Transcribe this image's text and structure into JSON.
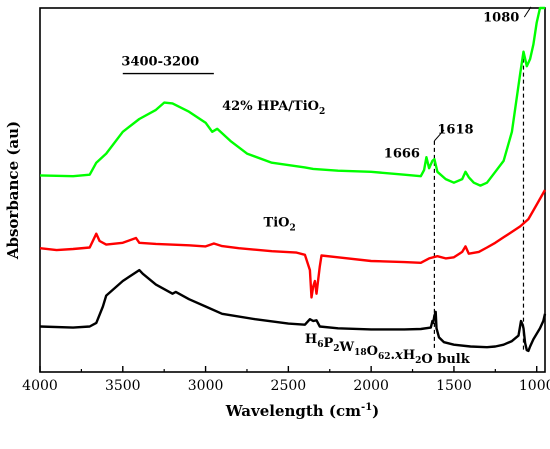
{
  "chart_data": {
    "type": "line",
    "xlabel": "Wavelength (cm",
    "xlabel_sup": "-1",
    "xlabel_end": ")",
    "ylabel": "Absorbance (au)",
    "xlim": [
      4000,
      950
    ],
    "ylim": [
      0,
      100
    ],
    "x_ticks": [
      4000,
      3500,
      3000,
      2500,
      2000,
      1500,
      1000
    ],
    "x_tick_labels": [
      "4000",
      "3500",
      "3000",
      "2500",
      "2000",
      "1500",
      "1000"
    ],
    "y_ticks_visible": false,
    "grid": false,
    "series": [
      {
        "color": "#00ff00",
        "label_parts": [
          {
            "t": "42% HPA/TiO"
          },
          {
            "t": "2",
            "sub": true
          }
        ],
        "points": [
          [
            4000,
            54.0
          ],
          [
            3800,
            53.8
          ],
          [
            3700,
            54.2
          ],
          [
            3660,
            57.5
          ],
          [
            3600,
            60
          ],
          [
            3500,
            66
          ],
          [
            3400,
            69.5
          ],
          [
            3300,
            72
          ],
          [
            3250,
            74
          ],
          [
            3200,
            73.8
          ],
          [
            3100,
            71.5
          ],
          [
            3000,
            68.5
          ],
          [
            2960,
            66
          ],
          [
            2930,
            66.8
          ],
          [
            2850,
            63.5
          ],
          [
            2750,
            60
          ],
          [
            2600,
            57.5
          ],
          [
            2400,
            56.2
          ],
          [
            2350,
            55.8
          ],
          [
            2200,
            55.3
          ],
          [
            2000,
            55.0
          ],
          [
            1800,
            54.2
          ],
          [
            1700,
            53.8
          ],
          [
            1680,
            55.5
          ],
          [
            1666,
            59
          ],
          [
            1650,
            56
          ],
          [
            1630,
            58
          ],
          [
            1618,
            58.5
          ],
          [
            1600,
            55
          ],
          [
            1550,
            53
          ],
          [
            1500,
            52
          ],
          [
            1450,
            53
          ],
          [
            1430,
            55
          ],
          [
            1410,
            53.5
          ],
          [
            1380,
            52
          ],
          [
            1340,
            51.2
          ],
          [
            1300,
            52
          ],
          [
            1250,
            55
          ],
          [
            1200,
            58
          ],
          [
            1150,
            66
          ],
          [
            1100,
            82
          ],
          [
            1080,
            88
          ],
          [
            1060,
            84
          ],
          [
            1040,
            86
          ],
          [
            1020,
            90
          ],
          [
            1000,
            96
          ],
          [
            980,
            100
          ],
          [
            950,
            100
          ]
        ]
      },
      {
        "color": "#ff0000",
        "label_parts": [
          {
            "t": "TiO"
          },
          {
            "t": "2",
            "sub": true
          }
        ],
        "points": [
          [
            4000,
            34.0
          ],
          [
            3900,
            33.5
          ],
          [
            3800,
            33.8
          ],
          [
            3700,
            34.2
          ],
          [
            3660,
            38
          ],
          [
            3640,
            36
          ],
          [
            3600,
            35
          ],
          [
            3500,
            35.5
          ],
          [
            3420,
            36.8
          ],
          [
            3400,
            35.5
          ],
          [
            3300,
            35.2
          ],
          [
            3100,
            34.8
          ],
          [
            3000,
            34.5
          ],
          [
            2950,
            35.3
          ],
          [
            2900,
            34.6
          ],
          [
            2800,
            34.0
          ],
          [
            2600,
            33.2
          ],
          [
            2450,
            32.8
          ],
          [
            2400,
            32.2
          ],
          [
            2370,
            28
          ],
          [
            2360,
            20.5
          ],
          [
            2350,
            23.5
          ],
          [
            2340,
            25
          ],
          [
            2330,
            21.5
          ],
          [
            2310,
            29
          ],
          [
            2300,
            32
          ],
          [
            2200,
            31.5
          ],
          [
            2000,
            30.5
          ],
          [
            1800,
            30.2
          ],
          [
            1700,
            30.0
          ],
          [
            1650,
            31.2
          ],
          [
            1600,
            31.8
          ],
          [
            1550,
            31.2
          ],
          [
            1500,
            31.5
          ],
          [
            1450,
            33
          ],
          [
            1430,
            34.5
          ],
          [
            1410,
            32.5
          ],
          [
            1350,
            33
          ],
          [
            1300,
            34.2
          ],
          [
            1250,
            35.5
          ],
          [
            1200,
            37
          ],
          [
            1150,
            38.5
          ],
          [
            1100,
            40
          ],
          [
            1050,
            42
          ],
          [
            1000,
            46
          ],
          [
            950,
            50
          ]
        ]
      },
      {
        "color": "#000000",
        "label_parts": [
          {
            "t": "H"
          },
          {
            "t": "6",
            "sub": true
          },
          {
            "t": "P"
          },
          {
            "t": "2",
            "sub": true
          },
          {
            "t": "W"
          },
          {
            "t": "18",
            "sub": true
          },
          {
            "t": "O"
          },
          {
            "t": "62",
            "sub": true
          },
          {
            "t": ".",
            "bold": true
          },
          {
            "t": "x",
            "italic": true
          },
          {
            "t": "H"
          },
          {
            "t": "2",
            "sub": true
          },
          {
            "t": "O bulk"
          }
        ],
        "points": [
          [
            4000,
            12.5
          ],
          [
            3800,
            12.2
          ],
          [
            3700,
            12.5
          ],
          [
            3660,
            13.5
          ],
          [
            3620,
            18
          ],
          [
            3600,
            21
          ],
          [
            3500,
            25
          ],
          [
            3400,
            28
          ],
          [
            3380,
            27
          ],
          [
            3300,
            24
          ],
          [
            3200,
            21.5
          ],
          [
            3180,
            22
          ],
          [
            3100,
            20
          ],
          [
            3000,
            18
          ],
          [
            2900,
            16
          ],
          [
            2700,
            14.5
          ],
          [
            2500,
            13.3
          ],
          [
            2400,
            13.0
          ],
          [
            2370,
            14.5
          ],
          [
            2350,
            14.0
          ],
          [
            2330,
            14.2
          ],
          [
            2310,
            12.5
          ],
          [
            2200,
            12
          ],
          [
            2000,
            11.7
          ],
          [
            1800,
            11.7
          ],
          [
            1700,
            11.8
          ],
          [
            1640,
            12.2
          ],
          [
            1630,
            14
          ],
          [
            1625,
            13.5
          ],
          [
            1618,
            15.5
          ],
          [
            1610,
            16.5
          ],
          [
            1605,
            12
          ],
          [
            1590,
            9.5
          ],
          [
            1560,
            8.2
          ],
          [
            1500,
            7.5
          ],
          [
            1400,
            7.0
          ],
          [
            1300,
            6.8
          ],
          [
            1250,
            7.0
          ],
          [
            1200,
            7.5
          ],
          [
            1150,
            8.5
          ],
          [
            1110,
            10
          ],
          [
            1095,
            14
          ],
          [
            1085,
            13
          ],
          [
            1080,
            12
          ],
          [
            1070,
            8
          ],
          [
            1060,
            6
          ],
          [
            1050,
            5.8
          ],
          [
            1040,
            7
          ],
          [
            1020,
            9
          ],
          [
            1000,
            10.5
          ],
          [
            980,
            12
          ],
          [
            960,
            14
          ],
          [
            950,
            16
          ]
        ]
      }
    ],
    "annotations": [
      {
        "text": "3400-3200",
        "range": [
          3500,
          2950
        ],
        "y": 82
      },
      {
        "text": "1618",
        "x": 1618,
        "y_top": 65
      },
      {
        "text": "1666",
        "x": 1666,
        "y": 60
      },
      {
        "text": "1080",
        "x": 1080,
        "y_top": 98
      },
      {
        "text": "1080-leader",
        "from": [
          1110,
          99
        ],
        "to": [
          1060,
          99
        ]
      }
    ],
    "dashed_lines": [
      {
        "x": 1618,
        "from_y": 63.5,
        "to_y": 6
      },
      {
        "x": 1080,
        "from_y": 88,
        "to_y": 6
      }
    ],
    "series_label_positions": [
      {
        "x": 2900,
        "y": 72
      },
      {
        "x": 2650,
        "y": 40
      },
      {
        "x": 2400,
        "y": 8
      }
    ]
  }
}
